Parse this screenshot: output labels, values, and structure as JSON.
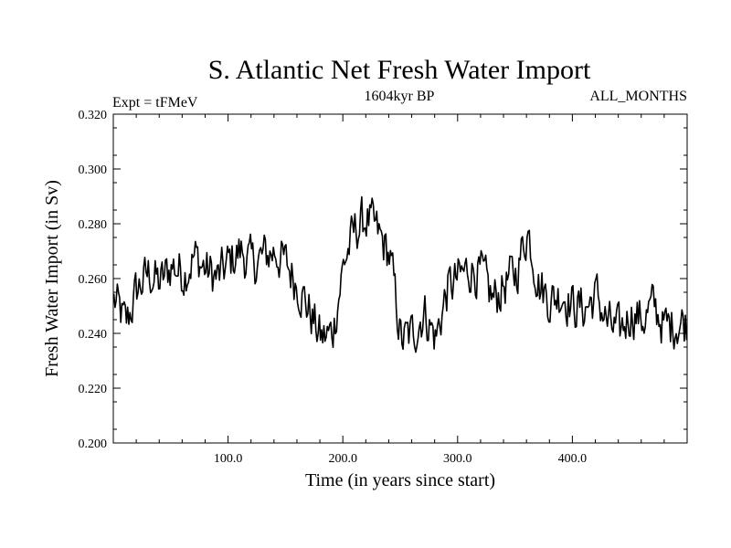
{
  "chart_data": {
    "type": "line",
    "title": "S. Atlantic Net Fresh Water Import",
    "subtitle_left": "Expt = tFMeV",
    "subtitle_center": "1604kyr BP",
    "subtitle_right": "ALL_MONTHS",
    "xlabel": "Time (in years since start)",
    "ylabel": "Fresh Water Import (in Sv)",
    "xlim": [
      0,
      500
    ],
    "ylim": [
      0.2,
      0.32
    ],
    "x_ticks": [
      100,
      200,
      300,
      400
    ],
    "x_tick_labels": [
      "100.0",
      "200.0",
      "300.0",
      "400.0"
    ],
    "y_ticks": [
      0.2,
      0.22,
      0.24,
      0.26,
      0.28,
      0.3,
      0.32
    ],
    "y_tick_labels": [
      "0.200",
      "0.220",
      "0.240",
      "0.260",
      "0.280",
      "0.300",
      "0.320"
    ],
    "line_color": "#000000",
    "series": [
      {
        "name": "Fresh Water Import",
        "x_start": 1,
        "x_step": 10,
        "values_note": "representative trend; each value is the local level of the noisy annual series",
        "values": [
          0.252,
          0.243,
          0.256,
          0.262,
          0.258,
          0.265,
          0.262,
          0.268,
          0.263,
          0.26,
          0.266,
          0.27,
          0.265,
          0.268,
          0.27,
          0.265,
          0.258,
          0.248,
          0.238,
          0.24,
          0.266,
          0.278,
          0.282,
          0.276,
          0.268,
          0.237,
          0.24,
          0.248,
          0.238,
          0.256,
          0.26,
          0.264,
          0.261,
          0.252,
          0.258,
          0.262,
          0.278,
          0.258,
          0.252,
          0.255,
          0.25,
          0.249,
          0.254,
          0.243,
          0.24,
          0.248,
          0.245,
          0.25,
          0.242,
          0.244
        ]
      }
    ]
  }
}
